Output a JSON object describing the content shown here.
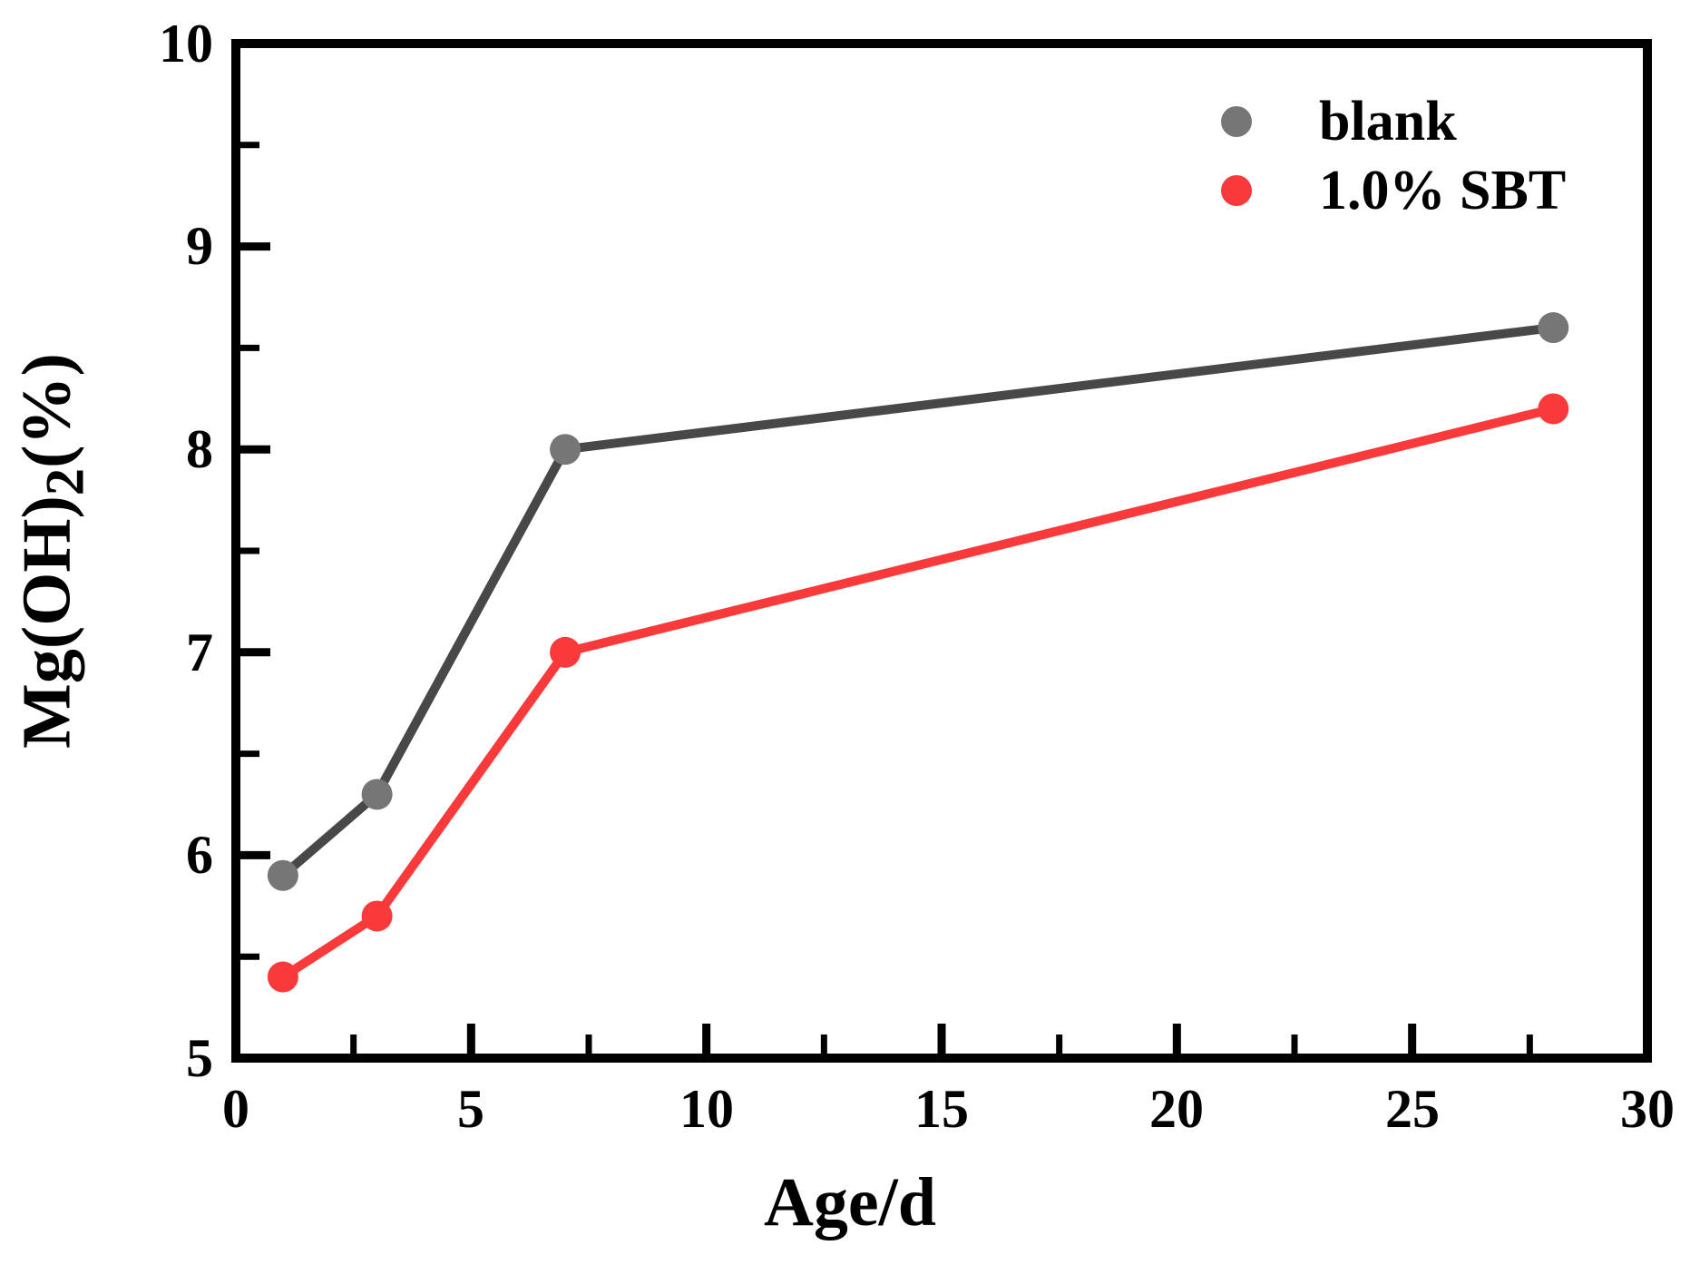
{
  "figure": {
    "background": "#ffffff"
  },
  "axis": {
    "x_title": "Age/d",
    "y_title_pre": "Mg(OH)",
    "y_title_sub": "2",
    "y_title_post": "(%)",
    "x_tick_labels": [
      "0",
      "5",
      "10",
      "15",
      "20",
      "25",
      "30"
    ],
    "y_tick_labels": [
      "5",
      "6",
      "7",
      "8",
      "9",
      "10"
    ]
  },
  "legend": {
    "items": [
      {
        "label": "blank"
      },
      {
        "label": "1.0% SBT"
      }
    ]
  },
  "chart_data": {
    "type": "line",
    "title": "",
    "xlabel": "Age/d",
    "ylabel": "Mg(OH)2(%)",
    "xlim": [
      0,
      30
    ],
    "ylim": [
      5,
      10
    ],
    "x_major_ticks": [
      0,
      5,
      10,
      15,
      20,
      25,
      30
    ],
    "x_minor_ticks": [
      2.5,
      7.5,
      12.5,
      17.5,
      22.5,
      27.5
    ],
    "y_major_ticks": [
      5,
      6,
      7,
      8,
      9,
      10
    ],
    "y_minor_ticks": [
      5.5,
      6.5,
      7.5,
      8.5,
      9.5
    ],
    "x": [
      1,
      3,
      7,
      28
    ],
    "series": [
      {
        "name": "blank",
        "values": [
          5.9,
          6.3,
          8.0,
          8.6
        ],
        "line_color": "#484848",
        "marker_color": "#767676"
      },
      {
        "name": "1.0% SBT",
        "values": [
          5.4,
          5.7,
          7.0,
          8.2
        ],
        "line_color": "#fa3a3a",
        "marker_color": "#fa3a3a"
      }
    ],
    "legend_position": "top-right",
    "grid": false,
    "axis_color": "#000000",
    "marker_shape": "circle"
  }
}
